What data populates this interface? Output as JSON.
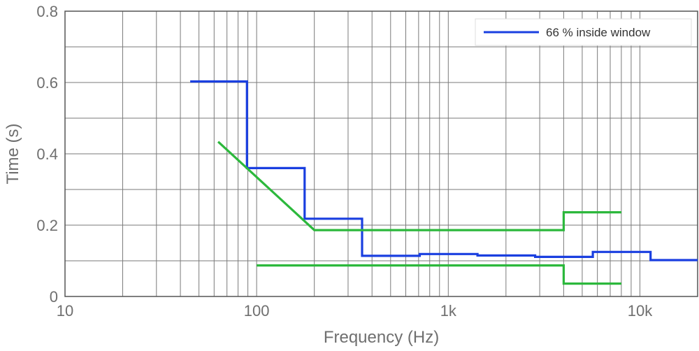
{
  "chart_data": {
    "type": "line",
    "xlabel": "Frequency (Hz)",
    "ylabel": "Time (s)",
    "xscale": "log",
    "xlim": [
      10,
      20000
    ],
    "ylim": [
      0,
      0.8
    ],
    "grid": true,
    "xticks": [
      {
        "value": 10,
        "label": "10"
      },
      {
        "value": 100,
        "label": "100"
      },
      {
        "value": 1000,
        "label": "1k"
      },
      {
        "value": 10000,
        "label": "10k"
      }
    ],
    "yticks": [
      {
        "value": 0,
        "label": "0"
      },
      {
        "value": 0.2,
        "label": "0.2"
      },
      {
        "value": 0.4,
        "label": "0.4"
      },
      {
        "value": 0.6,
        "label": "0.6"
      },
      {
        "value": 0.8,
        "label": "0.8"
      }
    ],
    "legend": {
      "position": "top-right"
    },
    "series": [
      {
        "name": "66 % inside window",
        "color": "#1a3fe0",
        "in_legend": true,
        "points": [
          [
            45,
            0.603
          ],
          [
            89,
            0.603
          ],
          [
            89,
            0.36
          ],
          [
            178,
            0.36
          ],
          [
            178,
            0.218
          ],
          [
            355,
            0.218
          ],
          [
            355,
            0.114
          ],
          [
            710,
            0.114
          ],
          [
            710,
            0.119
          ],
          [
            1420,
            0.119
          ],
          [
            1420,
            0.115
          ],
          [
            2840,
            0.115
          ],
          [
            2840,
            0.111
          ],
          [
            5680,
            0.111
          ],
          [
            5680,
            0.125
          ],
          [
            11360,
            0.125
          ],
          [
            11360,
            0.102
          ],
          [
            20000,
            0.102
          ]
        ]
      },
      {
        "name": "",
        "color": "#2cb83c",
        "in_legend": false,
        "points": [
          [
            63,
            0.434
          ],
          [
            200,
            0.186
          ],
          [
            4000,
            0.186
          ],
          [
            4000,
            0.236
          ],
          [
            8000,
            0.236
          ]
        ]
      },
      {
        "name": "",
        "color": "#2cb83c",
        "in_legend": false,
        "points": [
          [
            100,
            0.087
          ],
          [
            4000,
            0.087
          ],
          [
            4000,
            0.036
          ],
          [
            8000,
            0.036
          ]
        ]
      }
    ]
  }
}
